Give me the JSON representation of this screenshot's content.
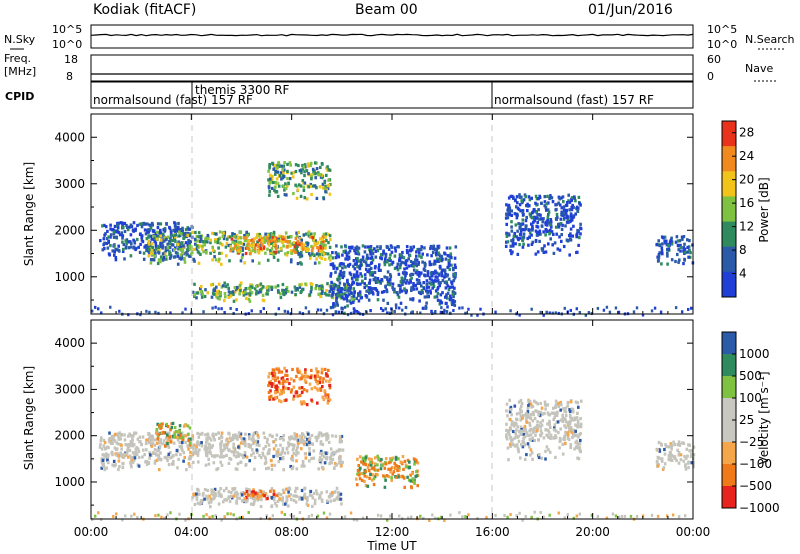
{
  "header": {
    "station": "Kodiak (fitACF)",
    "beam": "Beam 00",
    "date": "01/Jun/2016"
  },
  "noise_panel": {
    "left_label": "N.Sky",
    "right_label": "N.Search",
    "left_ticks": [
      "10^5",
      "10^0"
    ],
    "right_ticks": [
      "10^5",
      "10^0"
    ]
  },
  "freq_panel": {
    "left_label_1": "Freq.",
    "left_label_2": "[MHz]",
    "right_label": "Nave",
    "left_ticks": [
      "18",
      "8"
    ],
    "right_ticks": [
      "60",
      "0"
    ],
    "cpid_label": "CPID"
  },
  "cpid_bar": {
    "segments": [
      {
        "label": "normalsound (fast) 157 RF",
        "start_hour": 0.0
      },
      {
        "label": "themis 3300 RF",
        "start_hour": 4.0
      },
      {
        "label": "normalsound (fast) 157 RF",
        "start_hour": 16.0
      }
    ]
  },
  "colors": {
    "power": [
      "#1f3fd6",
      "#2b5aa8",
      "#2f8a5e",
      "#7fc241",
      "#f2c41b",
      "#f08a1e",
      "#e8321c"
    ],
    "velocity": [
      "#e8221c",
      "#f07a1a",
      "#f6a64a",
      "#c8c8c0",
      "#c8c8c0",
      "#7fc241",
      "#2f8a5e",
      "#2b5aa8"
    ],
    "ground_scatter": "#c4c4bc"
  },
  "chart_data": [
    {
      "type": "heatmap",
      "name": "power",
      "ylabel": "Slant Range [km]",
      "ylim": [
        200,
        4500
      ],
      "y_ticks": [
        "1000",
        "2000",
        "3000",
        "4000"
      ],
      "xlim_hours": [
        0,
        24
      ],
      "colorbar": {
        "label": "Power [dB]",
        "ticks": [
          "4",
          "8",
          "12",
          "16",
          "20",
          "24",
          "28"
        ],
        "range": [
          0,
          30
        ]
      },
      "features": [
        {
          "x_start": 0.3,
          "x_end": 4.0,
          "range_start": 1400,
          "range_end": 2200,
          "level": "low"
        },
        {
          "x_start": 2.2,
          "x_end": 9.5,
          "range_start": 1300,
          "range_end": 2000,
          "level": "mid"
        },
        {
          "x_start": 5.5,
          "x_end": 9.3,
          "range_start": 1500,
          "range_end": 1900,
          "level": "high"
        },
        {
          "x_start": 7.0,
          "x_end": 9.5,
          "range_start": 2700,
          "range_end": 3500,
          "level": "mid"
        },
        {
          "x_start": 4.0,
          "x_end": 10.5,
          "range_start": 500,
          "range_end": 900,
          "level": "mid"
        },
        {
          "x_start": 9.5,
          "x_end": 14.5,
          "range_start": 200,
          "range_end": 1700,
          "level": "low"
        },
        {
          "x_start": 16.5,
          "x_end": 19.5,
          "range_start": 1500,
          "range_end": 2800,
          "level": "low"
        },
        {
          "x_start": 22.5,
          "x_end": 24.0,
          "range_start": 1300,
          "range_end": 1900,
          "level": "low"
        }
      ]
    },
    {
      "type": "heatmap",
      "name": "velocity",
      "ylabel": "Slant Range [km]",
      "xlabel": "Time UT",
      "ylim": [
        200,
        4500
      ],
      "y_ticks": [
        "1000",
        "2000",
        "3000",
        "4000"
      ],
      "xlim_hours": [
        0,
        24
      ],
      "x_ticks": [
        "00:00",
        "04:00",
        "08:00",
        "12:00",
        "16:00",
        "20:00",
        "00:00"
      ],
      "colorbar": {
        "label": "Velocity [m s⁻¹]",
        "ticks": [
          "1000",
          "500",
          "100",
          "25",
          "−25",
          "−100",
          "−500",
          "−1000"
        ]
      },
      "features": [
        {
          "x_start": 0.3,
          "x_end": 10.0,
          "range_start": 1300,
          "range_end": 2100,
          "kind": "ground"
        },
        {
          "x_start": 2.5,
          "x_end": 4.0,
          "range_start": 1800,
          "range_end": 2300,
          "kind": "toward"
        },
        {
          "x_start": 4.0,
          "x_end": 10.0,
          "range_start": 500,
          "range_end": 900,
          "kind": "ground"
        },
        {
          "x_start": 6.0,
          "x_end": 7.5,
          "range_start": 650,
          "range_end": 850,
          "kind": "away"
        },
        {
          "x_start": 7.0,
          "x_end": 9.5,
          "range_start": 2700,
          "range_end": 3500,
          "kind": "away"
        },
        {
          "x_start": 10.5,
          "x_end": 13.0,
          "range_start": 900,
          "range_end": 1600,
          "kind": "toward"
        },
        {
          "x_start": 16.5,
          "x_end": 19.5,
          "range_start": 1500,
          "range_end": 2800,
          "kind": "ground"
        },
        {
          "x_start": 22.5,
          "x_end": 24.0,
          "range_start": 1300,
          "range_end": 1900,
          "kind": "ground"
        }
      ]
    }
  ]
}
